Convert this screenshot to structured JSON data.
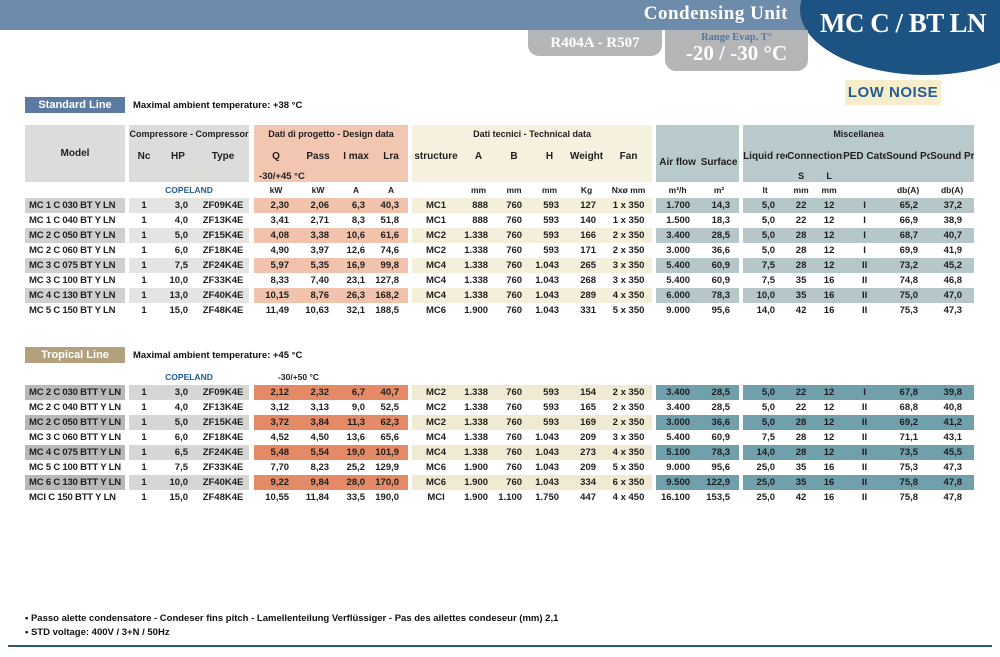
{
  "header": {
    "bar_title": "Condensing Unit",
    "product_title": "MC C / BT LN",
    "refrigerant_badge": "R404A - R507",
    "range_label": "Range Evap. T°",
    "range_value": "-20 / -30 °C",
    "low_noise_badge": "LOW NOISE"
  },
  "colors": {
    "topbar": "#6d8cab",
    "ellipse": "#1d5383",
    "badge_gray": "#b3b5b7",
    "low_noise_bg": "#f6edcd",
    "standard_badge": "#5b7ba3",
    "tropical_badge": "#b2a17c",
    "design_header": "#f2c6b1",
    "technical_header": "#f6f1de",
    "misc_header": "#b9cacd",
    "tropical_orange": "#e58a66",
    "tropical_teal": "#70a0ab"
  },
  "table": {
    "model": "Model",
    "groups": {
      "compressor": "Compressore - Compressor",
      "design": "Dati di progetto - Design data",
      "technical": "Dati tecnici - Technical data",
      "misc": "Miscellanea"
    },
    "cols": {
      "nc": "Nc",
      "hp": "HP",
      "type": "Type",
      "q": "Q",
      "pass": "Pass",
      "imax": "I max",
      "lra": "Lra",
      "structure": "structure",
      "a": "A",
      "b": "B",
      "h": "H",
      "weight": "Weight",
      "fan": "Fan",
      "airflow": "Air flow",
      "surface": "Surface",
      "liquid": "Liquid receiver",
      "connections": "Connections",
      "s": "S",
      "l": "L",
      "ped": "PED Category",
      "spower": "Sound Power",
      "spressure": "Sound Pressure"
    },
    "units": {
      "q": "kW",
      "pass": "kW",
      "imax": "A",
      "lra": "A",
      "a": "mm",
      "b": "mm",
      "h": "mm",
      "weight": "Kg",
      "fan": "Nxø mm",
      "airflow": "m³/h",
      "surface": "m²",
      "liquid": "lt",
      "s": "mm",
      "l": "mm",
      "spower": "db(A)",
      "spressure": "db(A)"
    }
  },
  "standard": {
    "badge": "Standard Line",
    "note": "Maximal ambient temperature: +38 °C",
    "brand": "COPELAND",
    "design_temp": "-30/+45 °C",
    "rows": [
      {
        "model": "MC 1 C 030 BT Y LN",
        "nc": "1",
        "hp": "3,0",
        "type": "ZF09K4E",
        "q": "2,30",
        "pass": "2,06",
        "imax": "6,3",
        "lra": "40,3",
        "structure": "MC1",
        "a": "888",
        "b": "760",
        "h": "593",
        "weight": "127",
        "fan": "1 x 350",
        "airflow": "1.700",
        "surface": "14,3",
        "liquid": "5,0",
        "s": "22",
        "l": "12",
        "ped": "I",
        "spower": "65,2",
        "spressure": "37,2"
      },
      {
        "model": "MC 1 C 040 BT Y LN",
        "nc": "1",
        "hp": "4,0",
        "type": "ZF13K4E",
        "q": "3,41",
        "pass": "2,71",
        "imax": "8,3",
        "lra": "51,8",
        "structure": "MC1",
        "a": "888",
        "b": "760",
        "h": "593",
        "weight": "140",
        "fan": "1 x 350",
        "airflow": "1.500",
        "surface": "18,3",
        "liquid": "5,0",
        "s": "22",
        "l": "12",
        "ped": "I",
        "spower": "66,9",
        "spressure": "38,9"
      },
      {
        "model": "MC 2 C 050 BT Y LN",
        "nc": "1",
        "hp": "5,0",
        "type": "ZF15K4E",
        "q": "4,08",
        "pass": "3,38",
        "imax": "10,6",
        "lra": "61,6",
        "structure": "MC2",
        "a": "1.338",
        "b": "760",
        "h": "593",
        "weight": "166",
        "fan": "2 x 350",
        "airflow": "3.400",
        "surface": "28,5",
        "liquid": "5,0",
        "s": "28",
        "l": "12",
        "ped": "I",
        "spower": "68,7",
        "spressure": "40,7"
      },
      {
        "model": "MC 2 C 060 BT Y LN",
        "nc": "1",
        "hp": "6,0",
        "type": "ZF18K4E",
        "q": "4,90",
        "pass": "3,97",
        "imax": "12,6",
        "lra": "74,6",
        "structure": "MC2",
        "a": "1.338",
        "b": "760",
        "h": "593",
        "weight": "171",
        "fan": "2 x 350",
        "airflow": "3.000",
        "surface": "36,6",
        "liquid": "5,0",
        "s": "28",
        "l": "12",
        "ped": "I",
        "spower": "69,9",
        "spressure": "41,9"
      },
      {
        "model": "MC 3 C 075 BT Y LN",
        "nc": "1",
        "hp": "7,5",
        "type": "ZF24K4E",
        "q": "5,97",
        "pass": "5,35",
        "imax": "16,9",
        "lra": "99,8",
        "structure": "MC4",
        "a": "1.338",
        "b": "760",
        "h": "1.043",
        "weight": "265",
        "fan": "3 x 350",
        "airflow": "5.400",
        "surface": "60,9",
        "liquid": "7,5",
        "s": "28",
        "l": "12",
        "ped": "II",
        "spower": "73,2",
        "spressure": "45,2"
      },
      {
        "model": "MC 3 C 100 BT Y LN",
        "nc": "1",
        "hp": "10,0",
        "type": "ZF33K4E",
        "q": "8,33",
        "pass": "7,40",
        "imax": "23,1",
        "lra": "127,8",
        "structure": "MC4",
        "a": "1.338",
        "b": "760",
        "h": "1.043",
        "weight": "268",
        "fan": "3 x 350",
        "airflow": "5.400",
        "surface": "60,9",
        "liquid": "7,5",
        "s": "35",
        "l": "16",
        "ped": "II",
        "spower": "74,8",
        "spressure": "46,8"
      },
      {
        "model": "MC 4 C 130 BT Y LN",
        "nc": "1",
        "hp": "13,0",
        "type": "ZF40K4E",
        "q": "10,15",
        "pass": "8,76",
        "imax": "26,3",
        "lra": "168,2",
        "structure": "MC4",
        "a": "1.338",
        "b": "760",
        "h": "1.043",
        "weight": "289",
        "fan": "4 x 350",
        "airflow": "6.000",
        "surface": "78,3",
        "liquid": "10,0",
        "s": "35",
        "l": "16",
        "ped": "II",
        "spower": "75,0",
        "spressure": "47,0"
      },
      {
        "model": "MC 5 C 150 BT Y LN",
        "nc": "1",
        "hp": "15,0",
        "type": "ZF48K4E",
        "q": "11,49",
        "pass": "10,63",
        "imax": "32,1",
        "lra": "188,5",
        "structure": "MC6",
        "a": "1.900",
        "b": "760",
        "h": "1.043",
        "weight": "331",
        "fan": "5 x 350",
        "airflow": "9.000",
        "surface": "95,6",
        "liquid": "14,0",
        "s": "42",
        "l": "16",
        "ped": "II",
        "spower": "75,3",
        "spressure": "47,3"
      }
    ]
  },
  "tropical": {
    "badge": "Tropical Line",
    "note": "Maximal ambient temperature: +45 °C",
    "brand": "COPELAND",
    "design_temp": "-30/+50 °C",
    "rows": [
      {
        "model": "MC 2 C 030 BTT Y LN",
        "nc": "1",
        "hp": "3,0",
        "type": "ZF09K4E",
        "q": "2,12",
        "pass": "2,32",
        "imax": "6,7",
        "lra": "40,7",
        "structure": "MC2",
        "a": "1.338",
        "b": "760",
        "h": "593",
        "weight": "154",
        "fan": "2 x 350",
        "airflow": "3.400",
        "surface": "28,5",
        "liquid": "5,0",
        "s": "22",
        "l": "12",
        "ped": "I",
        "spower": "67,8",
        "spressure": "39,8"
      },
      {
        "model": "MC 2 C 040 BTT Y LN",
        "nc": "1",
        "hp": "4,0",
        "type": "ZF13K4E",
        "q": "3,12",
        "pass": "3,13",
        "imax": "9,0",
        "lra": "52,5",
        "structure": "MC2",
        "a": "1.338",
        "b": "760",
        "h": "593",
        "weight": "165",
        "fan": "2 x 350",
        "airflow": "3.400",
        "surface": "28,5",
        "liquid": "5,0",
        "s": "22",
        "l": "12",
        "ped": "II",
        "spower": "68,8",
        "spressure": "40,8"
      },
      {
        "model": "MC 2 C 050 BTT Y LN",
        "nc": "1",
        "hp": "5,0",
        "type": "ZF15K4E",
        "q": "3,72",
        "pass": "3,84",
        "imax": "11,3",
        "lra": "62,3",
        "structure": "MC2",
        "a": "1.338",
        "b": "760",
        "h": "593",
        "weight": "169",
        "fan": "2 x 350",
        "airflow": "3.000",
        "surface": "36,6",
        "liquid": "5,0",
        "s": "28",
        "l": "12",
        "ped": "II",
        "spower": "69,2",
        "spressure": "41,2"
      },
      {
        "model": "MC 3 C 060 BTT Y LN",
        "nc": "1",
        "hp": "6,0",
        "type": "ZF18K4E",
        "q": "4,52",
        "pass": "4,50",
        "imax": "13,6",
        "lra": "65,6",
        "structure": "MC4",
        "a": "1.338",
        "b": "760",
        "h": "1.043",
        "weight": "209",
        "fan": "3 x 350",
        "airflow": "5.400",
        "surface": "60,9",
        "liquid": "7,5",
        "s": "28",
        "l": "12",
        "ped": "II",
        "spower": "71,1",
        "spressure": "43,1"
      },
      {
        "model": "MC 4 C 075 BTT Y LN",
        "nc": "1",
        "hp": "6,5",
        "type": "ZF24K4E",
        "q": "5,48",
        "pass": "5,54",
        "imax": "19,0",
        "lra": "101,9",
        "structure": "MC4",
        "a": "1.338",
        "b": "760",
        "h": "1.043",
        "weight": "273",
        "fan": "4 x 350",
        "airflow": "5.100",
        "surface": "78,3",
        "liquid": "14,0",
        "s": "28",
        "l": "12",
        "ped": "II",
        "spower": "73,5",
        "spressure": "45,5"
      },
      {
        "model": "MC 5 C 100 BTT Y LN",
        "nc": "1",
        "hp": "7,5",
        "type": "ZF33K4E",
        "q": "7,70",
        "pass": "8,23",
        "imax": "25,2",
        "lra": "129,9",
        "structure": "MC6",
        "a": "1.900",
        "b": "760",
        "h": "1.043",
        "weight": "209",
        "fan": "5 x 350",
        "airflow": "9.000",
        "surface": "95,6",
        "liquid": "25,0",
        "s": "35",
        "l": "16",
        "ped": "II",
        "spower": "75,3",
        "spressure": "47,3"
      },
      {
        "model": "MC 6 C 130 BTT Y LN",
        "nc": "1",
        "hp": "10,0",
        "type": "ZF40K4E",
        "q": "9,22",
        "pass": "9,84",
        "imax": "28,0",
        "lra": "170,0",
        "structure": "MC6",
        "a": "1.900",
        "b": "760",
        "h": "1.043",
        "weight": "334",
        "fan": "6 x 350",
        "airflow": "9.500",
        "surface": "122,9",
        "liquid": "25,0",
        "s": "35",
        "l": "16",
        "ped": "II",
        "spower": "75,8",
        "spressure": "47,8"
      },
      {
        "model": "MCI  C 150 BTT Y LN",
        "nc": "1",
        "hp": "15,0",
        "type": "ZF48K4E",
        "q": "10,55",
        "pass": "11,84",
        "imax": "33,5",
        "lra": "190,0",
        "structure": "MCI",
        "a": "1.900",
        "b": "1.100",
        "h": "1.750",
        "weight": "447",
        "fan": "4 x 450",
        "airflow": "16.100",
        "surface": "153,5",
        "liquid": "25,0",
        "s": "42",
        "l": "16",
        "ped": "II",
        "spower": "75,8",
        "spressure": "47,8"
      }
    ]
  },
  "footnotes": [
    "Passo alette condensatore - Condeser fins pitch - Lamellenteilung Verflüssiger - Pas des ailettes condeseur (mm) 2,1",
    "STD voltage: 400V / 3+N / 50Hz"
  ]
}
